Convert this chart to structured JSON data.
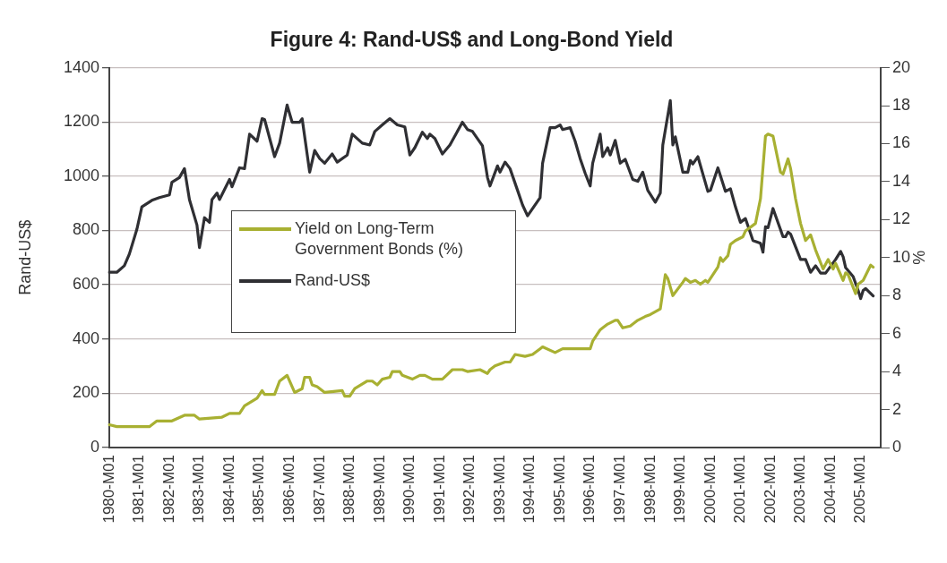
{
  "chart_data": {
    "type": "line",
    "title": "Figure 4: Rand-US$ and Long-Bond Yield",
    "ylabel": "Rand-US$",
    "y2label": "%",
    "categories": [
      "1980-M01",
      null,
      null,
      null,
      null,
      null,
      null,
      null,
      null,
      null,
      null,
      null,
      "1981-M01",
      null,
      null,
      null,
      null,
      null,
      null,
      null,
      null,
      null,
      null,
      null,
      "1982-M01",
      null,
      null,
      null,
      null,
      null,
      null,
      null,
      null,
      null,
      null,
      null,
      "1983-M01",
      null,
      null,
      null,
      null,
      null,
      null,
      null,
      null,
      null,
      null,
      null,
      "1984-M01",
      null,
      null,
      null,
      null,
      null,
      null,
      null,
      null,
      null,
      null,
      null,
      "1985-M01",
      null,
      null,
      null,
      null,
      null,
      null,
      null,
      null,
      null,
      null,
      null,
      "1986-M01",
      null,
      null,
      null,
      null,
      null,
      null,
      null,
      null,
      null,
      null,
      null,
      "1987-M01",
      null,
      null,
      null,
      null,
      null,
      null,
      null,
      null,
      null,
      null,
      null,
      "1988-M01",
      null,
      null,
      null,
      null,
      null,
      null,
      null,
      null,
      null,
      null,
      null,
      "1989-M01",
      null,
      null,
      null,
      null,
      null,
      null,
      null,
      null,
      null,
      null,
      null,
      "1990-M01",
      null,
      null,
      null,
      null,
      null,
      null,
      null,
      null,
      null,
      null,
      null,
      "1991-M01",
      null,
      null,
      null,
      null,
      null,
      null,
      null,
      null,
      null,
      null,
      null,
      "1992-M01",
      null,
      null,
      null,
      null,
      null,
      null,
      null,
      null,
      null,
      null,
      null,
      "1993-M01",
      null,
      null,
      null,
      null,
      null,
      null,
      null,
      null,
      null,
      null,
      null,
      "1994-M01",
      null,
      null,
      null,
      null,
      null,
      null,
      null,
      null,
      null,
      null,
      null,
      "1995-M01",
      null,
      null,
      null,
      null,
      null,
      null,
      null,
      null,
      null,
      null,
      null,
      "1996-M01",
      null,
      null,
      null,
      null,
      null,
      null,
      null,
      null,
      null,
      null,
      null,
      "1997-M01",
      null,
      null,
      null,
      null,
      null,
      null,
      null,
      null,
      null,
      null,
      null,
      "1998-M01",
      null,
      null,
      null,
      null,
      null,
      null,
      null,
      null,
      null,
      null,
      null,
      "1999-M01",
      null,
      null,
      null,
      null,
      null,
      null,
      null,
      null,
      null,
      null,
      null,
      "2000-M01",
      null,
      null,
      null,
      null,
      null,
      null,
      null,
      null,
      null,
      null,
      null,
      "2001-M01",
      null,
      null,
      null,
      null,
      null,
      null,
      null,
      null,
      null,
      null,
      null,
      "2002-M01",
      null,
      null,
      null,
      null,
      null,
      null,
      null,
      null,
      null,
      null,
      null,
      "2003-M01",
      null,
      null,
      null,
      null,
      null,
      null,
      null,
      null,
      null,
      null,
      null,
      "2004-M01",
      null,
      null,
      null,
      null,
      null,
      null,
      null,
      null,
      null,
      null,
      null,
      "2005-M01",
      null,
      null,
      null,
      null,
      null,
      null,
      null,
      null
    ],
    "ylim": [
      0,
      1400
    ],
    "yticks": [
      0,
      200,
      400,
      600,
      800,
      1000,
      1200,
      1400
    ],
    "y2lim": [
      0,
      20
    ],
    "y2ticks": [
      0,
      2,
      4,
      6,
      8,
      10,
      12,
      14,
      16,
      18,
      20
    ],
    "grid": "y",
    "legend": "center left",
    "marker": "none",
    "line_style": "solid",
    "series": [
      {
        "name": "Yield on Long-Term Government Bonds (%)",
        "color": "#a8b032",
        "axis": "y2",
        "values": [
          1.2,
          null,
          null,
          1.1,
          null,
          null,
          null,
          null,
          null,
          null,
          null,
          null,
          null,
          null,
          null,
          null,
          1.1,
          null,
          null,
          1.4,
          null,
          null,
          null,
          null,
          null,
          1.4,
          null,
          null,
          null,
          null,
          1.7,
          null,
          null,
          null,
          1.7,
          null,
          1.5,
          null,
          null,
          null,
          null,
          null,
          null,
          null,
          null,
          1.6,
          null,
          null,
          1.8,
          null,
          null,
          null,
          1.8,
          null,
          2.2,
          null,
          null,
          null,
          null,
          2.6,
          null,
          3.0,
          2.8,
          null,
          null,
          null,
          2.8,
          null,
          3.5,
          null,
          null,
          3.8,
          null,
          null,
          2.9,
          null,
          null,
          3.1,
          3.7,
          null,
          3.7,
          3.3,
          null,
          3.2,
          null,
          null,
          2.9,
          null,
          null,
          null,
          null,
          null,
          null,
          3.0,
          2.7,
          null,
          2.7,
          null,
          3.1,
          null,
          null,
          null,
          null,
          3.5,
          null,
          3.5,
          null,
          3.3,
          null,
          3.6,
          null,
          null,
          3.7,
          4.0,
          null,
          null,
          4.0,
          3.8,
          null,
          null,
          null,
          3.6,
          null,
          null,
          3.8,
          null,
          3.8,
          null,
          null,
          3.6,
          null,
          null,
          null,
          3.6,
          null,
          null,
          null,
          4.1,
          null,
          null,
          null,
          4.1,
          null,
          4.0,
          null,
          null,
          null,
          null,
          4.1,
          null,
          null,
          3.9,
          4.1,
          null,
          4.3,
          null,
          null,
          null,
          4.5,
          null,
          4.5,
          null,
          4.9,
          null,
          null,
          null,
          4.8,
          null,
          null,
          4.9,
          null,
          null,
          5.2,
          5.3,
          null,
          null,
          null,
          null,
          5.0,
          null,
          null,
          5.2,
          null,
          null,
          null,
          null,
          null,
          null,
          null,
          5.2,
          null,
          null,
          5.2,
          5.6,
          null,
          null,
          6.2,
          6.3,
          null,
          6.5,
          null,
          null,
          6.7,
          6.7,
          null,
          6.3,
          null,
          null,
          6.4,
          null,
          null,
          6.7,
          null,
          null,
          6.9,
          null,
          7.0,
          null,
          null,
          null,
          7.3,
          null,
          9.1,
          8.9,
          null,
          8.0,
          null,
          null,
          null,
          8.7,
          8.9,
          null,
          8.7,
          null,
          8.8,
          null,
          8.6,
          null,
          8.8,
          8.7,
          null,
          null,
          9.3,
          9.5,
          10.0,
          9.8,
          null,
          10.1,
          10.7,
          null,
          10.9,
          null,
          null,
          11.1,
          11.4,
          null,
          null,
          null,
          11.8,
          null,
          13.1,
          null,
          16.4,
          16.5,
          null,
          16.4,
          null,
          null,
          14.5,
          14.4,
          null,
          15.2,
          14.7,
          null,
          13.1,
          null,
          11.8,
          null,
          10.9,
          null,
          11.2,
          null,
          10.4,
          null,
          null,
          9.4,
          null,
          9.9,
          null,
          9.4,
          9.7,
          null,
          null,
          8.8,
          9.2,
          9.1,
          null,
          null,
          8.1,
          8.6,
          null,
          8.8,
          null,
          null,
          9.6,
          9.5,
          null,
          null,
          null
        ]
      },
      {
        "name": "Rand-US$",
        "color": "#2f2f33",
        "values": [
          646,
          null,
          null,
          646,
          null,
          null,
          670,
          null,
          713,
          null,
          null,
          804,
          null,
          887,
          null,
          null,
          null,
          911,
          null,
          null,
          921,
          null,
          null,
          null,
          931,
          978,
          null,
          null,
          995,
          null,
          1028,
          null,
          914,
          null,
          null,
          820,
          737,
          null,
          847,
          null,
          830,
          914,
          null,
          938,
          914,
          null,
          null,
          null,
          988,
          961,
          null,
          null,
          1031,
          null,
          1028,
          null,
          1155,
          null,
          null,
          1129,
          null,
          1212,
          1209,
          null,
          null,
          null,
          1072,
          null,
          1122,
          null,
          null,
          1262,
          null,
          1199,
          null,
          null,
          1199,
          1212,
          null,
          null,
          1015,
          null,
          1095,
          null,
          1065,
          null,
          1048,
          null,
          null,
          1082,
          null,
          1052,
          null,
          null,
          null,
          1078,
          null,
          1155,
          null,
          null,
          null,
          1122,
          null,
          null,
          1115,
          null,
          1165,
          null,
          null,
          1189,
          null,
          null,
          1212,
          null,
          null,
          1189,
          null,
          null,
          1182,
          null,
          1078,
          null,
          1105,
          null,
          null,
          1162,
          null,
          1139,
          1155,
          null,
          1139,
          null,
          null,
          1082,
          null,
          null,
          1115,
          null,
          null,
          null,
          null,
          1199,
          null,
          1172,
          null,
          1165,
          null,
          null,
          null,
          1112,
          null,
          995,
          964,
          null,
          null,
          1038,
          1015,
          null,
          1052,
          null,
          1028,
          null,
          null,
          948,
          null,
          894,
          null,
          854,
          null,
          null,
          null,
          null,
          921,
          1048,
          null,
          null,
          1179,
          null,
          1179,
          null,
          1189,
          1172,
          null,
          null,
          1179,
          null,
          1129,
          null,
          1065,
          null,
          1011,
          null,
          964,
          1048,
          null,
          null,
          1155,
          1072,
          null,
          1105,
          1078,
          null,
          1132,
          null,
          1048,
          null,
          1062,
          null,
          null,
          988,
          null,
          981,
          null,
          1015,
          null,
          948,
          null,
          null,
          904,
          null,
          938,
          1115,
          null,
          null,
          1279,
          1115,
          1145,
          null,
          null,
          1015,
          null,
          1015,
          1058,
          1045,
          null,
          1072,
          null,
          null,
          null,
          944,
          948,
          null,
          null,
          1031,
          null,
          null,
          944,
          null,
          954,
          null,
          887,
          null,
          830,
          null,
          844,
          null,
          null,
          763,
          null,
          null,
          753,
          720,
          814,
          810,
          null,
          881,
          null,
          null,
          null,
          777,
          777,
          794,
          787,
          null,
          null,
          null,
          693,
          null,
          693,
          null,
          646,
          null,
          670,
          null,
          643,
          null,
          643,
          null,
          null,
          null,
          693,
          null,
          723,
          703,
          663,
          null,
          null,
          630,
          null,
          579,
          549,
          579,
          586,
          null,
          null,
          559,
          null,
          null,
          null
        ]
      }
    ]
  }
}
